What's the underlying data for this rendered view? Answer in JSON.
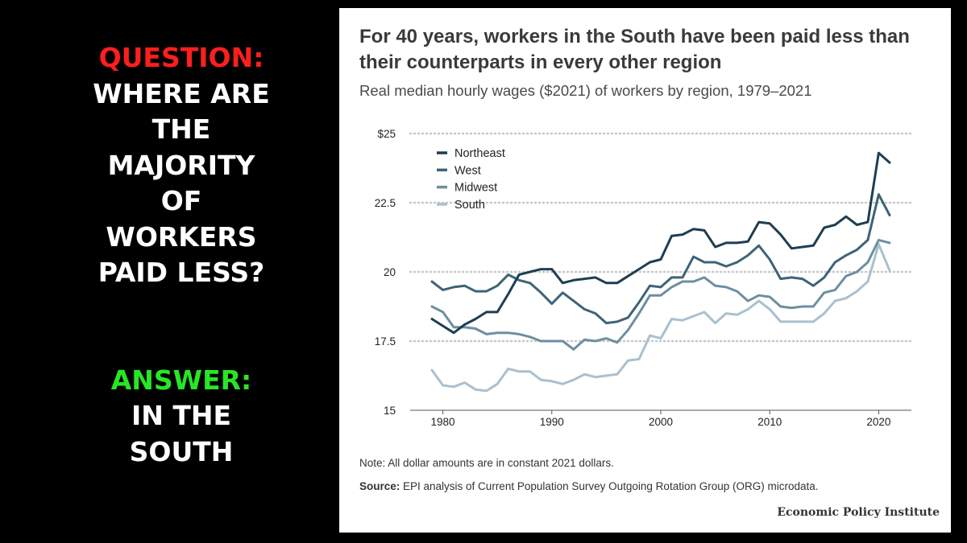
{
  "left_panel": {
    "question_label": "QUESTION:",
    "question_lines": [
      "WHERE ARE",
      "THE",
      "MAJORITY",
      "OF",
      "WORKERS",
      "PAID LESS?"
    ],
    "answer_label": "ANSWER:",
    "answer_lines": [
      "IN THE",
      "SOUTH"
    ],
    "colors": {
      "question_label": "#ff1e1e",
      "answer_label": "#27e627",
      "text": "#ffffff"
    }
  },
  "card": {
    "title": "For 40 years, workers in the South have been paid less than their counterparts in every other region",
    "subtitle": "Real median hourly wages ($2021) of workers by region, 1979–2021",
    "note": "Note: All dollar amounts are in constant 2021 dollars.",
    "source_label": "Source:",
    "source_text": " EPI analysis of Current Population Survey Outgoing Rotation Group (ORG) microdata.",
    "brand": "Economic Policy Institute"
  },
  "chart_data": {
    "type": "line",
    "ylim": [
      15,
      25
    ],
    "xlim": [
      1977,
      2023
    ],
    "y_ticks": [
      15,
      17.5,
      20,
      22.5,
      25
    ],
    "y_tick_labels": [
      "15",
      "17.5",
      "20",
      "22.5",
      "$25"
    ],
    "x_ticks": [
      1980,
      1990,
      2000,
      2010,
      2020
    ],
    "x_tick_labels": [
      "1980",
      "1990",
      "2000",
      "2010",
      "2020"
    ],
    "grid": "horizontal dotted",
    "legend_position": "top-left",
    "x": [
      1979,
      1980,
      1981,
      1982,
      1983,
      1984,
      1985,
      1986,
      1987,
      1988,
      1989,
      1990,
      1991,
      1992,
      1993,
      1994,
      1995,
      1996,
      1997,
      1998,
      1999,
      2000,
      2001,
      2002,
      2003,
      2004,
      2005,
      2006,
      2007,
      2008,
      2009,
      2010,
      2011,
      2012,
      2013,
      2014,
      2015,
      2016,
      2017,
      2018,
      2019,
      2020,
      2021
    ],
    "series": [
      {
        "name": "Northeast",
        "color": "#1e3e52",
        "values": [
          18.3,
          18.05,
          17.8,
          18.1,
          18.3,
          18.55,
          18.55,
          19.2,
          19.9,
          20.0,
          20.1,
          20.1,
          19.6,
          19.7,
          19.75,
          19.8,
          19.6,
          19.6,
          19.85,
          20.1,
          20.35,
          20.45,
          21.3,
          21.35,
          21.55,
          21.5,
          20.9,
          21.05,
          21.05,
          21.1,
          21.8,
          21.75,
          21.35,
          20.85,
          20.9,
          20.95,
          21.6,
          21.7,
          22.0,
          21.7,
          21.8,
          24.3,
          23.95
        ]
      },
      {
        "name": "West",
        "color": "#3d6478",
        "values": [
          19.65,
          19.35,
          19.45,
          19.5,
          19.3,
          19.3,
          19.5,
          19.9,
          19.7,
          19.6,
          19.25,
          18.85,
          19.25,
          18.95,
          18.65,
          18.5,
          18.15,
          18.2,
          18.35,
          18.9,
          19.5,
          19.45,
          19.8,
          19.8,
          20.55,
          20.35,
          20.35,
          20.2,
          20.35,
          20.6,
          20.95,
          20.45,
          19.75,
          19.8,
          19.75,
          19.5,
          19.8,
          20.35,
          20.6,
          20.8,
          21.15,
          22.8,
          22.05
        ]
      },
      {
        "name": "Midwest",
        "color": "#6d8fa0",
        "values": [
          18.75,
          18.55,
          18.0,
          18.0,
          17.95,
          17.75,
          17.8,
          17.8,
          17.75,
          17.65,
          17.5,
          17.5,
          17.5,
          17.2,
          17.55,
          17.5,
          17.6,
          17.45,
          17.9,
          18.5,
          19.15,
          19.15,
          19.45,
          19.65,
          19.65,
          19.8,
          19.5,
          19.45,
          19.3,
          18.95,
          19.15,
          19.1,
          18.75,
          18.7,
          18.75,
          18.75,
          19.25,
          19.35,
          19.85,
          20.0,
          20.35,
          21.15,
          21.05
        ]
      },
      {
        "name": "South",
        "color": "#a9c0cf",
        "values": [
          16.45,
          15.9,
          15.85,
          16.0,
          15.75,
          15.7,
          15.95,
          16.5,
          16.4,
          16.4,
          16.1,
          16.05,
          15.95,
          16.1,
          16.3,
          16.2,
          16.25,
          16.3,
          16.8,
          16.85,
          17.7,
          17.6,
          18.3,
          18.25,
          18.4,
          18.55,
          18.15,
          18.5,
          18.45,
          18.65,
          18.95,
          18.65,
          18.2,
          18.2,
          18.2,
          18.2,
          18.5,
          18.95,
          19.05,
          19.3,
          19.65,
          21.0,
          20.05
        ]
      }
    ]
  }
}
